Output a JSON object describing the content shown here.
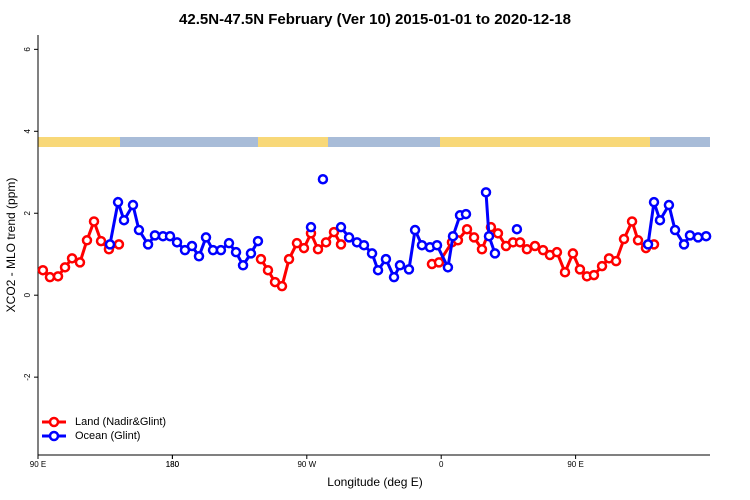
{
  "chart_data": {
    "type": "line",
    "title": "42.5N-47.5N February (Ver 10)   2015-01-01 to 2020-12-18",
    "x_label": "Longitude (deg E)",
    "y_label": "XCO2 - MLO trend (ppm)",
    "xlim": [
      90,
      540
    ],
    "ylim": [
      -3.9,
      6.35
    ],
    "xticks": [
      {
        "value": 90,
        "label": "90 E"
      },
      180,
      {
        "value": 270,
        "label": "90 W"
      },
      {
        "value": 360,
        "label": "0"
      },
      {
        "value": 450,
        "label": "90 E"
      },
      180.0001
    ],
    "yticks": [
      -2,
      0,
      2,
      4,
      6
    ],
    "legend": "bottom-left",
    "series": [
      {
        "name": "Land (Nadir&Glint)",
        "color": "#ff0000",
        "x": [
          93.3,
          98.0,
          103.4,
          108.1,
          112.8,
          118.1,
          122.8,
          127.5,
          132.2,
          137.5,
          144.2,
          null,
          239.3,
          244.0,
          248.7,
          253.4,
          258.1,
          263.4,
          268.1,
          272.8,
          277.5,
          282.9,
          288.2,
          292.9,
          null,
          353.8,
          358.5,
          367.2,
          371.2,
          377.3,
          382.0,
          387.3,
          393.3,
          398.0,
          403.4,
          408.1,
          412.8,
          417.4,
          422.8,
          428.2,
          432.8,
          437.5,
          442.9,
          448.2,
          452.9,
          457.6,
          462.3,
          467.7,
          472.4,
          477.1,
          482.4,
          487.8,
          491.8,
          497.1,
          502.5
        ],
        "values": [
          0.61,
          0.44,
          0.46,
          0.68,
          0.9,
          0.8,
          1.34,
          1.8,
          1.32,
          1.12,
          1.24,
          null,
          0.88,
          0.61,
          0.32,
          0.22,
          0.88,
          1.27,
          1.15,
          1.51,
          1.12,
          1.29,
          1.54,
          1.24,
          null,
          0.76,
          0.8,
          1.29,
          1.34,
          1.61,
          1.41,
          1.12,
          1.66,
          1.51,
          1.2,
          1.29,
          1.29,
          1.12,
          1.2,
          1.1,
          0.98,
          1.05,
          0.56,
          1.02,
          0.63,
          0.46,
          0.49,
          0.71,
          0.9,
          0.83,
          1.37,
          1.8,
          1.34,
          1.15,
          1.24
        ]
      },
      {
        "name": "Ocean (Glint)",
        "color": "#0000ff",
        "x": [
          138.2,
          143.6,
          147.6,
          153.6,
          157.6,
          163.7,
          168.3,
          173.7,
          178.4,
          183.1,
          188.4,
          193.1,
          197.8,
          202.5,
          207.2,
          212.5,
          217.9,
          222.6,
          227.3,
          232.6,
          237.3,
          null,
          272.8,
          null,
          280.8,
          null,
          292.9,
          298.3,
          303.6,
          308.3,
          313.7,
          317.7,
          323.0,
          328.4,
          332.4,
          338.4,
          342.5,
          347.1,
          352.5,
          357.2,
          364.5,
          367.9,
          372.6,
          376.6,
          null,
          390.0,
          392.0,
          396.0,
          null,
          410.7,
          null,
          498.5,
          502.5,
          506.5,
          512.5,
          516.6,
          522.6,
          526.6,
          532.0,
          537.4
        ],
        "values": [
          1.24,
          2.27,
          1.83,
          2.2,
          1.59,
          1.24,
          1.46,
          1.44,
          1.44,
          1.29,
          1.1,
          1.2,
          0.95,
          1.41,
          1.1,
          1.1,
          1.27,
          1.05,
          0.73,
          1.02,
          1.32,
          null,
          1.66,
          null,
          2.83,
          null,
          1.66,
          1.41,
          1.29,
          1.22,
          1.02,
          0.61,
          0.88,
          0.44,
          0.73,
          0.63,
          1.59,
          1.22,
          1.17,
          1.22,
          0.68,
          1.44,
          1.95,
          1.98,
          null,
          2.51,
          1.44,
          1.02,
          null,
          1.61,
          null,
          1.24,
          2.27,
          1.83,
          2.2,
          1.59,
          1.24,
          1.46,
          1.41,
          1.44
        ]
      }
    ]
  }
}
